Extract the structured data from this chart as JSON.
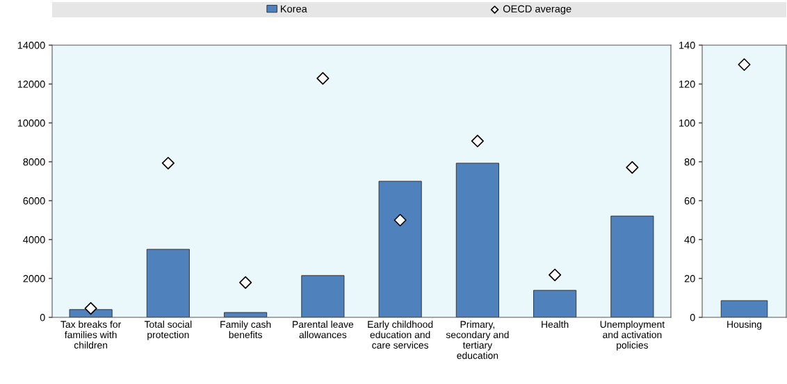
{
  "chart_data": [
    {
      "type": "bar",
      "categories": [
        "Tax breaks for families with children",
        "Total social protection",
        "Family cash benefits",
        "Parental leave allowances",
        "Early childhood education and care services",
        "Primary, secondary and tertiary education",
        "Health",
        "Unemployment and activation policies"
      ],
      "series": [
        {
          "name": "Korea",
          "type": "bar",
          "color": "#4f81bd",
          "values": [
            400,
            3500,
            250,
            2150,
            7000,
            7930,
            1390,
            5210
          ]
        },
        {
          "name": "OECD average",
          "type": "scatter",
          "marker": "diamond",
          "color": "#ffffff",
          "values": [
            460,
            7930,
            1790,
            12290,
            5000,
            9070,
            2180,
            7710
          ]
        }
      ],
      "ylim": [
        0,
        14000
      ],
      "yticks": [
        0,
        2000,
        4000,
        6000,
        8000,
        10000,
        12000,
        14000
      ],
      "legend": "top",
      "grid": false
    },
    {
      "type": "bar",
      "categories": [
        "Housing"
      ],
      "series": [
        {
          "type": "bar",
          "color": "#4f81bd",
          "values": [
            8.6
          ]
        },
        {
          "type": "scatter",
          "marker": "diamond",
          "color": "#ffffff",
          "values": [
            130
          ]
        }
      ],
      "ylim": [
        0,
        140
      ],
      "yticks": [
        0,
        20,
        40,
        60,
        80,
        100,
        120,
        140
      ],
      "grid": false
    }
  ]
}
